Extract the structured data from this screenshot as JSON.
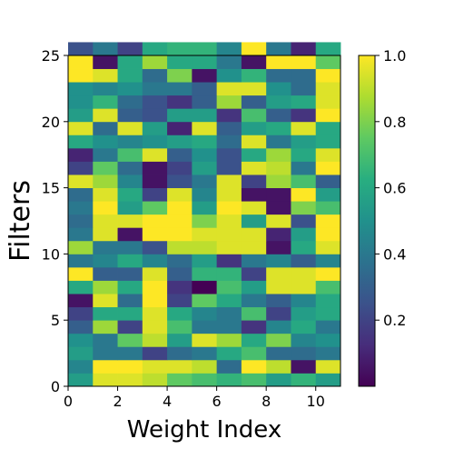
{
  "chart_data": {
    "type": "heatmap",
    "xlabel": "Weight Index",
    "ylabel": "Filters",
    "xlim": [
      0,
      11
    ],
    "ylim": [
      0,
      25
    ],
    "x_ticks": [
      "0",
      "2",
      "4",
      "6",
      "8",
      "10"
    ],
    "y_ticks": [
      "0",
      "5",
      "10",
      "15",
      "20",
      "25"
    ],
    "colorbar": {
      "min": 0.0,
      "max": 1.0,
      "ticks": [
        "0.2",
        "0.4",
        "0.6",
        "0.8",
        "1.0"
      ],
      "colormap": "viridis"
    },
    "rows_bottom_to_top": [
      [
        0.55,
        0.95,
        0.95,
        0.9,
        0.75,
        0.7,
        0.65,
        0.7,
        0.55,
        0.65,
        0.55
      ],
      [
        0.45,
        1.0,
        1.0,
        0.95,
        0.95,
        0.9,
        0.35,
        1.0,
        0.9,
        0.05,
        0.95
      ],
      [
        0.55,
        0.4,
        0.4,
        0.2,
        0.35,
        0.4,
        0.6,
        0.7,
        0.35,
        0.35,
        0.4
      ],
      [
        0.5,
        0.4,
        0.75,
        0.9,
        0.55,
        0.95,
        0.85,
        0.6,
        0.8,
        0.45,
        0.5
      ],
      [
        0.3,
        0.85,
        0.2,
        0.95,
        0.7,
        0.4,
        0.4,
        0.15,
        0.45,
        0.6,
        0.4
      ],
      [
        0.2,
        0.6,
        0.6,
        0.95,
        0.6,
        0.45,
        0.4,
        0.7,
        0.2,
        0.55,
        0.6
      ],
      [
        0.05,
        0.95,
        0.35,
        1.0,
        0.2,
        0.75,
        0.6,
        0.4,
        0.3,
        0.45,
        0.6
      ],
      [
        0.6,
        0.85,
        0.6,
        1.0,
        0.15,
        0.0,
        0.7,
        0.55,
        0.95,
        0.95,
        0.7
      ],
      [
        1.0,
        0.3,
        0.3,
        0.95,
        0.3,
        0.65,
        0.65,
        0.2,
        0.95,
        0.95,
        1.0
      ],
      [
        0.4,
        0.45,
        0.6,
        0.45,
        0.35,
        0.55,
        0.15,
        0.4,
        0.45,
        0.3,
        0.45
      ],
      [
        0.85,
        0.4,
        0.4,
        0.25,
        0.9,
        0.9,
        0.95,
        0.95,
        0.05,
        0.6,
        0.95
      ],
      [
        0.4,
        0.95,
        0.05,
        1.0,
        1.0,
        0.95,
        0.95,
        0.95,
        0.1,
        0.55,
        1.0
      ],
      [
        0.35,
        0.95,
        0.95,
        1.0,
        1.0,
        0.8,
        0.95,
        0.55,
        0.95,
        0.25,
        1.0
      ],
      [
        0.4,
        1.0,
        0.55,
        0.75,
        1.0,
        0.55,
        1.0,
        0.95,
        0.05,
        0.8,
        0.7
      ],
      [
        0.35,
        0.95,
        0.6,
        0.2,
        0.95,
        0.45,
        0.95,
        0.05,
        0.05,
        1.0,
        0.55
      ],
      [
        0.95,
        0.85,
        0.45,
        0.05,
        0.25,
        0.4,
        0.95,
        0.2,
        0.85,
        0.7,
        0.3
      ],
      [
        0.2,
        0.75,
        0.35,
        0.05,
        0.2,
        0.55,
        0.25,
        0.95,
        0.9,
        0.4,
        1.0
      ],
      [
        0.1,
        0.4,
        0.7,
        0.95,
        0.3,
        0.5,
        0.25,
        0.6,
        0.85,
        0.6,
        0.95
      ],
      [
        0.6,
        0.5,
        0.45,
        0.5,
        0.55,
        0.6,
        0.35,
        0.95,
        0.4,
        0.55,
        0.6
      ],
      [
        0.95,
        0.35,
        0.95,
        0.55,
        0.1,
        0.95,
        0.3,
        0.55,
        0.6,
        0.95,
        0.6
      ],
      [
        0.55,
        0.95,
        0.3,
        0.25,
        0.55,
        0.55,
        0.15,
        0.7,
        0.3,
        0.15,
        1.0
      ],
      [
        0.5,
        0.65,
        0.35,
        0.25,
        0.15,
        0.3,
        0.85,
        0.3,
        0.55,
        0.6,
        0.95
      ],
      [
        0.5,
        0.45,
        0.5,
        0.4,
        0.4,
        0.3,
        0.95,
        0.95,
        0.5,
        0.35,
        0.95
      ],
      [
        1.0,
        0.95,
        0.6,
        0.35,
        0.8,
        0.05,
        0.5,
        0.65,
        0.35,
        0.35,
        1.0
      ],
      [
        1.0,
        0.05,
        0.6,
        0.85,
        0.6,
        0.6,
        0.4,
        0.05,
        1.0,
        1.0,
        0.75
      ],
      [
        0.25,
        0.4,
        0.2,
        0.6,
        0.65,
        0.65,
        0.45,
        1.0,
        0.4,
        0.1,
        0.6
      ]
    ]
  }
}
